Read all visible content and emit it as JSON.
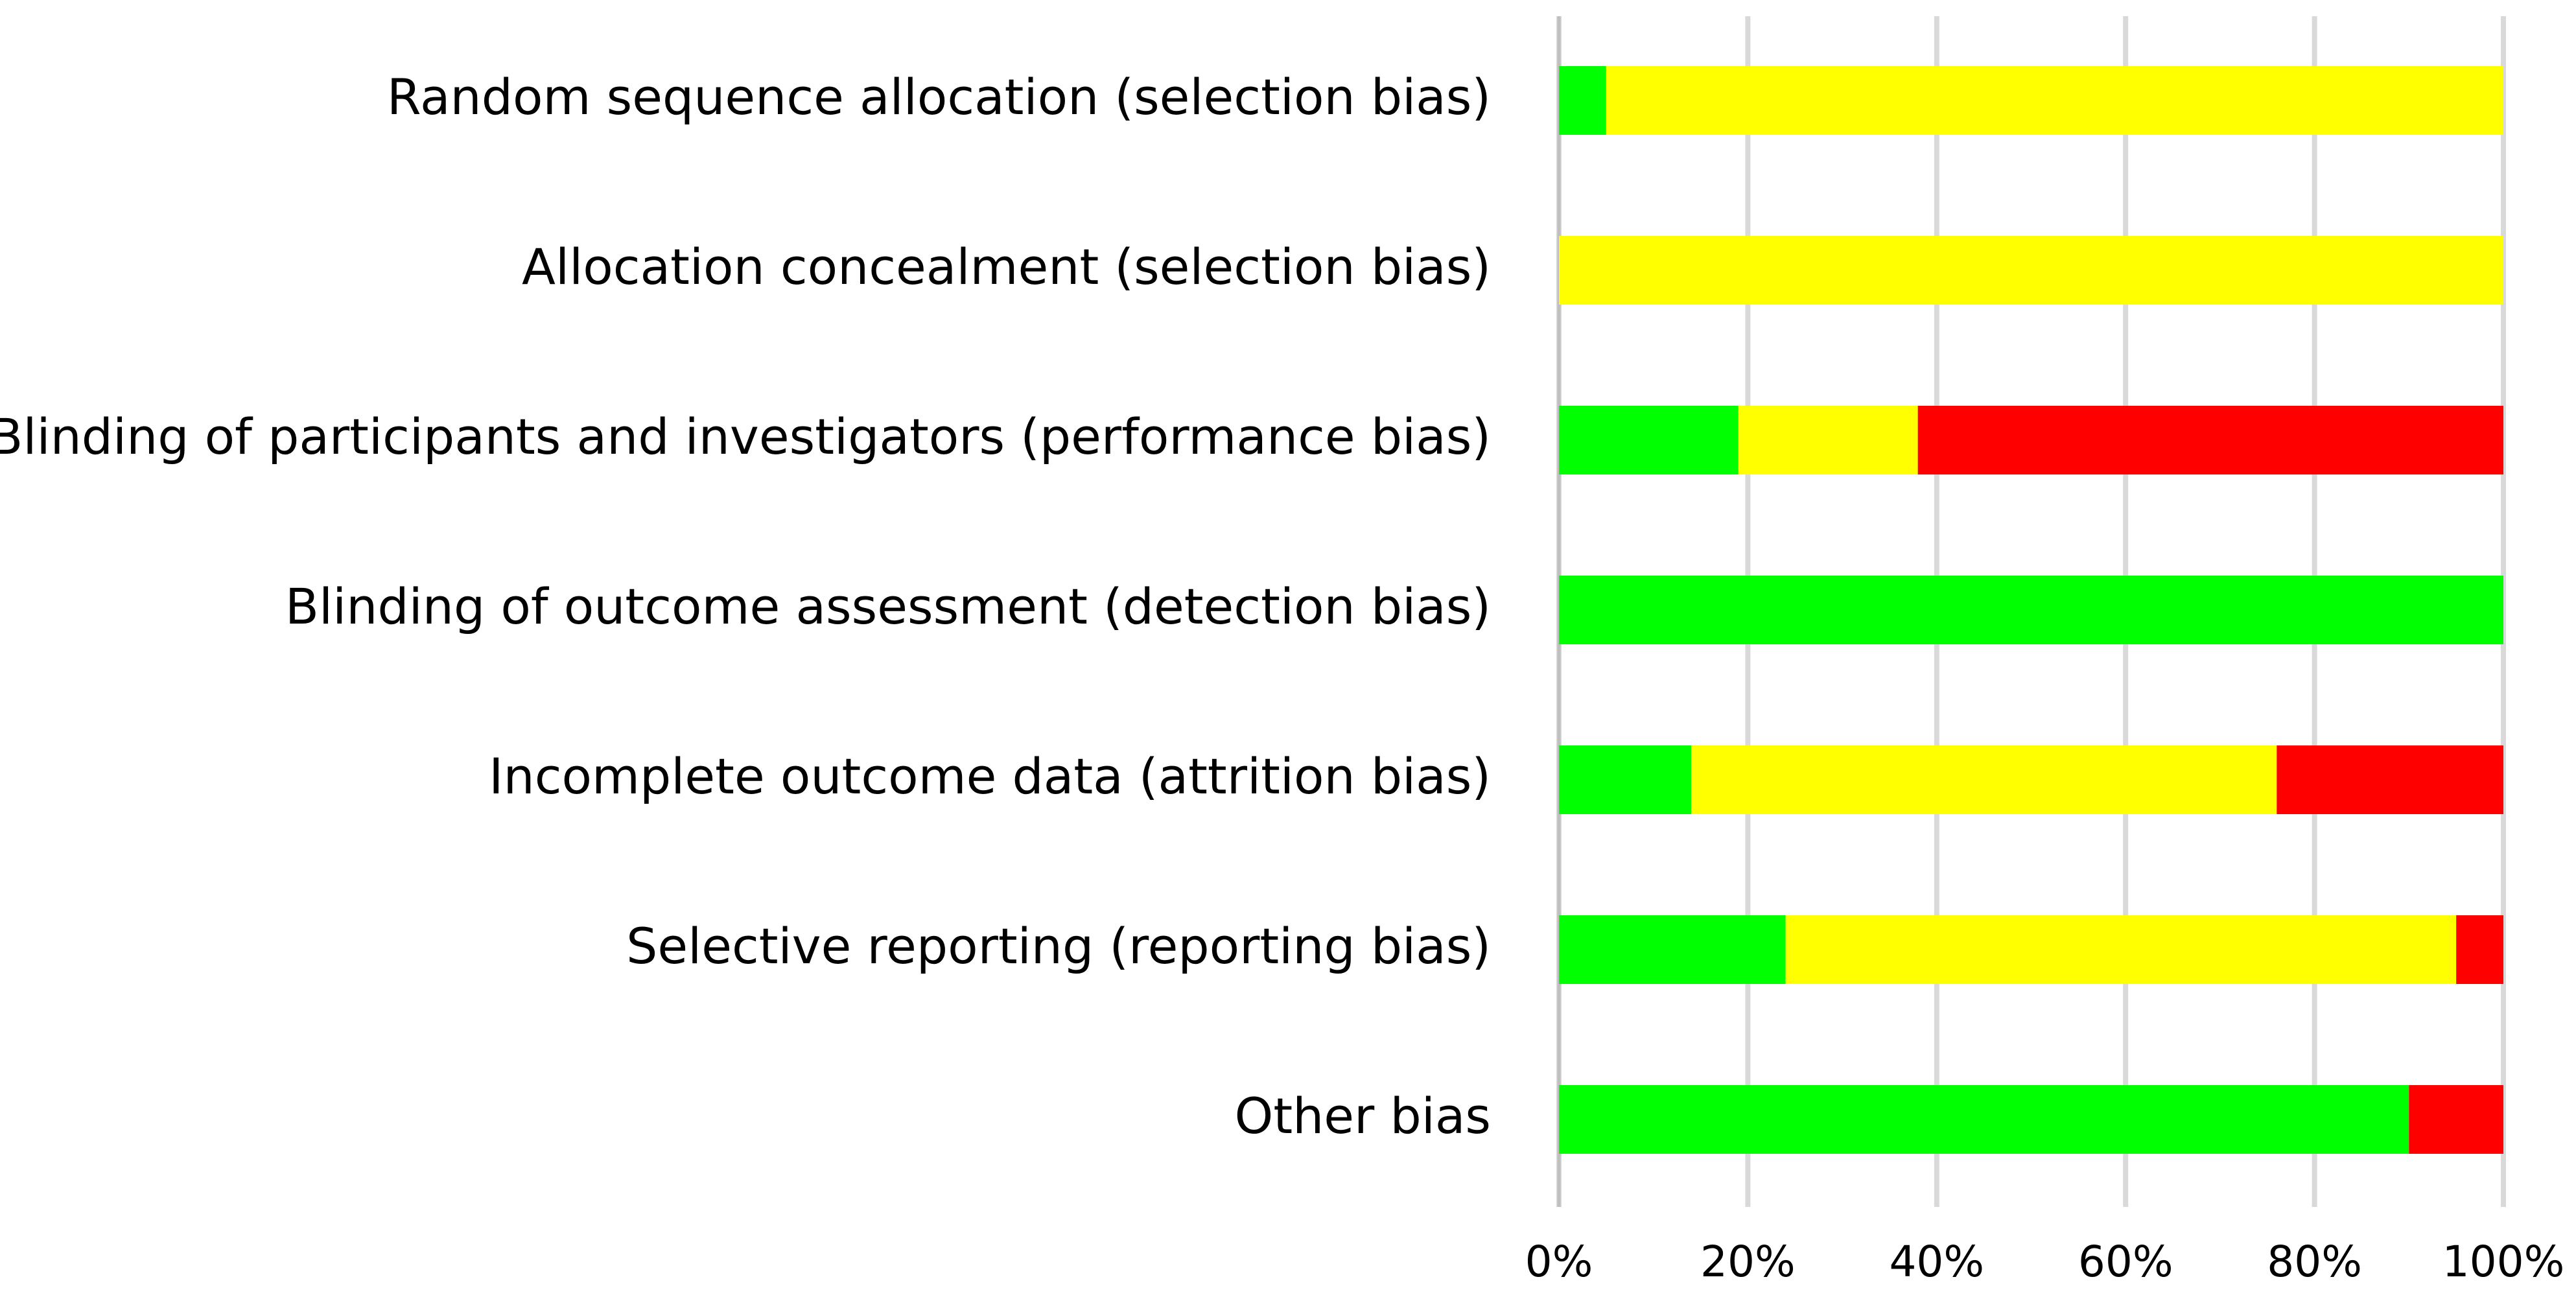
{
  "chart_data": {
    "type": "stacked-bar-horizontal",
    "categories": [
      "Random sequence allocation (selection bias)",
      "Allocation concealment (selection bias)",
      "Blinding of participants and investigators (performance bias)",
      "Blinding of outcome assessment (detection bias)",
      "Incomplete outcome data (attrition bias)",
      "Selective reporting (reporting bias)",
      "Other bias"
    ],
    "series": [
      {
        "color": "#00ff00",
        "values": [
          5,
          0,
          19,
          100,
          14,
          24,
          90
        ]
      },
      {
        "color": "#ffff00",
        "values": [
          95,
          100,
          19,
          0,
          62,
          71,
          0
        ]
      },
      {
        "color": "#ff0000",
        "values": [
          0,
          0,
          62,
          0,
          24,
          5,
          10
        ]
      }
    ],
    "xlim": [
      0,
      100
    ],
    "xticks": [
      {
        "value": 0,
        "label": "0%"
      },
      {
        "value": 20,
        "label": "20%"
      },
      {
        "value": 40,
        "label": "40%"
      },
      {
        "value": 60,
        "label": "60%"
      },
      {
        "value": 80,
        "label": "80%"
      },
      {
        "value": 100,
        "label": "100%"
      }
    ],
    "grid": true
  }
}
